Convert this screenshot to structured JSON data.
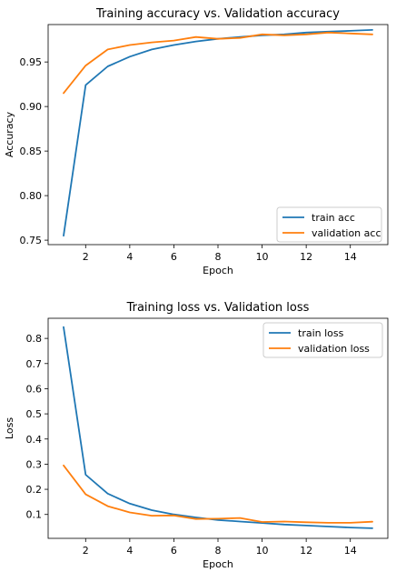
{
  "chart_data": [
    {
      "type": "line",
      "title": "Training accuracy vs. Validation accuracy",
      "xlabel": "Epoch",
      "ylabel": "Accuracy",
      "x": [
        1,
        2,
        3,
        4,
        5,
        6,
        7,
        8,
        9,
        10,
        11,
        12,
        13,
        14,
        15
      ],
      "xlim": [
        0.3,
        15.7
      ],
      "ylim": [
        0.745,
        0.992
      ],
      "xticks": [
        2,
        4,
        6,
        8,
        10,
        12,
        14
      ],
      "yticks": [
        0.75,
        0.8,
        0.85,
        0.9,
        0.95
      ],
      "ytick_labels": [
        "0.75",
        "0.80",
        "0.85",
        "0.90",
        "0.95"
      ],
      "legend": "lower-right",
      "grid": false,
      "series": [
        {
          "name": "train acc",
          "color": "#1f77b4",
          "values": [
            0.755,
            0.924,
            0.945,
            0.956,
            0.964,
            0.969,
            0.973,
            0.976,
            0.978,
            0.98,
            0.981,
            0.983,
            0.984,
            0.985,
            0.986
          ]
        },
        {
          "name": "validation acc",
          "color": "#ff7f0e",
          "values": [
            0.915,
            0.946,
            0.964,
            0.969,
            0.972,
            0.974,
            0.978,
            0.976,
            0.977,
            0.981,
            0.98,
            0.981,
            0.983,
            0.982,
            0.981
          ]
        }
      ]
    },
    {
      "type": "line",
      "title": "Training loss vs. Validation loss",
      "xlabel": "Epoch",
      "ylabel": "Loss",
      "x": [
        1,
        2,
        3,
        4,
        5,
        6,
        7,
        8,
        9,
        10,
        11,
        12,
        13,
        14,
        15
      ],
      "xlim": [
        0.3,
        15.7
      ],
      "ylim": [
        0.005,
        0.88
      ],
      "xticks": [
        2,
        4,
        6,
        8,
        10,
        12,
        14
      ],
      "yticks": [
        0.1,
        0.2,
        0.3,
        0.4,
        0.5,
        0.6,
        0.7,
        0.8
      ],
      "ytick_labels": [
        "0.1",
        "0.2",
        "0.3",
        "0.4",
        "0.5",
        "0.6",
        "0.7",
        "0.8"
      ],
      "legend": "upper-right",
      "grid": false,
      "series": [
        {
          "name": "train loss",
          "color": "#1f77b4",
          "values": [
            0.845,
            0.258,
            0.183,
            0.143,
            0.117,
            0.1,
            0.088,
            0.078,
            0.072,
            0.066,
            0.06,
            0.056,
            0.052,
            0.048,
            0.045
          ]
        },
        {
          "name": "validation loss",
          "color": "#ff7f0e",
          "values": [
            0.295,
            0.18,
            0.133,
            0.108,
            0.095,
            0.096,
            0.082,
            0.083,
            0.086,
            0.07,
            0.072,
            0.069,
            0.067,
            0.067,
            0.071
          ]
        }
      ]
    }
  ]
}
